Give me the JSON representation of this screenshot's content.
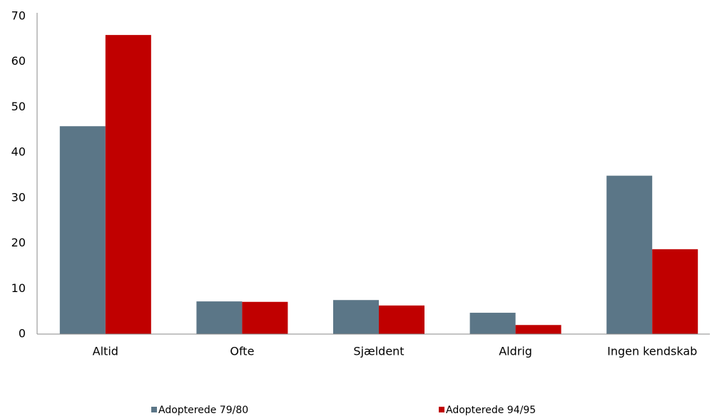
{
  "chart_data": {
    "type": "bar",
    "categories": [
      "Altid",
      "Ofte",
      "Sjældent",
      "Aldrig",
      "Ingen kendskab"
    ],
    "series": [
      {
        "name": "Adopterede 79/80",
        "color": "#5b7687",
        "values": [
          45.8,
          7.2,
          7.5,
          4.7,
          34.9
        ]
      },
      {
        "name": "Adopterede 94/95",
        "color": "#c00000",
        "values": [
          65.9,
          7.1,
          6.3,
          2.0,
          18.7
        ]
      }
    ],
    "ylim": [
      0,
      70
    ],
    "yticks": [
      0,
      10,
      20,
      30,
      40,
      50,
      60,
      70
    ],
    "grid": false
  }
}
